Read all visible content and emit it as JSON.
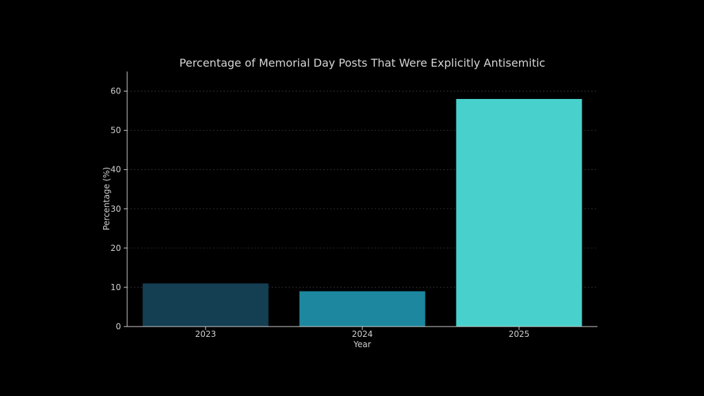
{
  "chart_data": {
    "type": "bar",
    "title": "Percentage of Memorial Day Posts That Were Explicitly Antisemitic",
    "xlabel": "Year",
    "ylabel": "Percentage (%)",
    "categories": [
      "2023",
      "2024",
      "2025"
    ],
    "values": [
      11,
      9,
      58
    ],
    "colors": [
      "#143e52",
      "#1c879e",
      "#48d1cc"
    ],
    "ylim": [
      0,
      65
    ],
    "yticks": [
      0,
      10,
      20,
      30,
      40,
      50,
      60
    ],
    "grid": true,
    "background": "#000000",
    "text_color": "#d0d0d0"
  }
}
